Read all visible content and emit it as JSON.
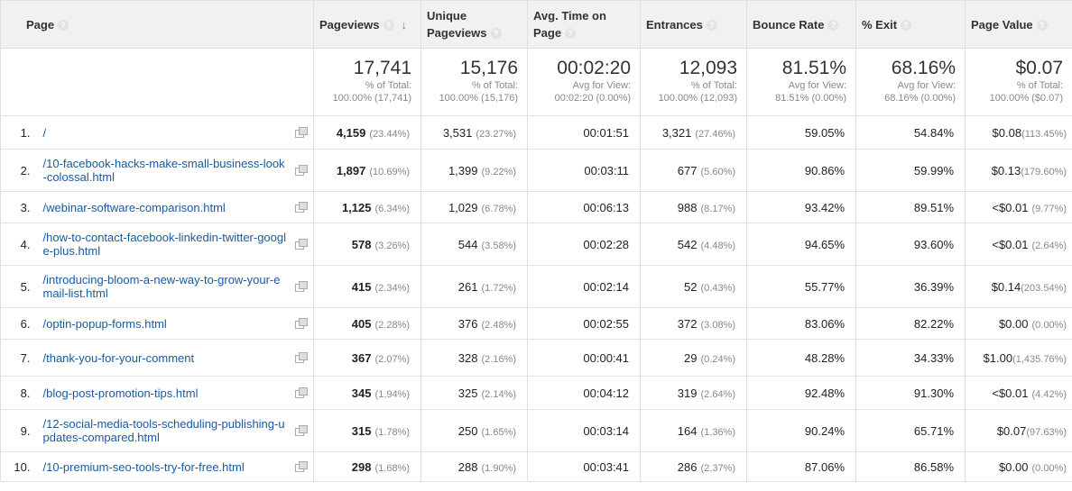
{
  "headers": {
    "page": "Page",
    "pageviews": "Pageviews",
    "unique_line1": "Unique",
    "unique_line2": "Pageviews",
    "avg_line1": "Avg. Time on",
    "avg_line2": "Page",
    "entrances": "Entrances",
    "bounce": "Bounce Rate",
    "exit": "% Exit",
    "value": "Page Value",
    "help_glyph": "?",
    "sort_glyph": "↓"
  },
  "totals": {
    "pageviews": {
      "value": "17,741",
      "sub1": "% of Total:",
      "sub2": "100.00% (17,741)"
    },
    "unique": {
      "value": "15,176",
      "sub1": "% of Total:",
      "sub2": "100.00% (15,176)"
    },
    "avg_time": {
      "value": "00:02:20",
      "sub1": "Avg for View:",
      "sub2": "00:02:20 (0.00%)"
    },
    "entrances": {
      "value": "12,093",
      "sub1": "% of Total:",
      "sub2": "100.00% (12,093)"
    },
    "bounce": {
      "value": "81.51%",
      "sub1": "Avg for View:",
      "sub2": "81.51% (0.00%)"
    },
    "exit": {
      "value": "68.16%",
      "sub1": "Avg for View:",
      "sub2": "68.16% (0.00%)"
    },
    "value": {
      "value": "$0.07",
      "sub1": "% of Total:",
      "sub2": "100.00% ($0.07)"
    }
  },
  "rows": [
    {
      "index": "1.",
      "page": "/",
      "pageviews": "4,159",
      "pageviews_pct": "(23.44%)",
      "unique": "3,531",
      "unique_pct": "(23.27%)",
      "avg_time": "00:01:51",
      "entrances": "3,321",
      "entrances_pct": "(27.46%)",
      "bounce": "59.05%",
      "exit": "54.84%",
      "value": "$0.08",
      "value_pct": "(113.45%)"
    },
    {
      "index": "2.",
      "page": "/10-facebook-hacks-make-small-business-look-colossal.html",
      "pageviews": "1,897",
      "pageviews_pct": "(10.69%)",
      "unique": "1,399",
      "unique_pct": "(9.22%)",
      "avg_time": "00:03:11",
      "entrances": "677",
      "entrances_pct": "(5.60%)",
      "bounce": "90.86%",
      "exit": "59.99%",
      "value": "$0.13",
      "value_pct": "(179.60%)"
    },
    {
      "index": "3.",
      "page": "/webinar-software-comparison.html",
      "pageviews": "1,125",
      "pageviews_pct": "(6.34%)",
      "unique": "1,029",
      "unique_pct": "(6.78%)",
      "avg_time": "00:06:13",
      "entrances": "988",
      "entrances_pct": "(8.17%)",
      "bounce": "93.42%",
      "exit": "89.51%",
      "value": "<$0.01",
      "value_pct": "(9.77%)"
    },
    {
      "index": "4.",
      "page": "/how-to-contact-facebook-linkedin-twitter-google-plus.html",
      "pageviews": "578",
      "pageviews_pct": "(3.26%)",
      "unique": "544",
      "unique_pct": "(3.58%)",
      "avg_time": "00:02:28",
      "entrances": "542",
      "entrances_pct": "(4.48%)",
      "bounce": "94.65%",
      "exit": "93.60%",
      "value": "<$0.01",
      "value_pct": "(2.64%)"
    },
    {
      "index": "5.",
      "page": "/introducing-bloom-a-new-way-to-grow-your-email-list.html",
      "pageviews": "415",
      "pageviews_pct": "(2.34%)",
      "unique": "261",
      "unique_pct": "(1.72%)",
      "avg_time": "00:02:14",
      "entrances": "52",
      "entrances_pct": "(0.43%)",
      "bounce": "55.77%",
      "exit": "36.39%",
      "value": "$0.14",
      "value_pct": "(203.54%)"
    },
    {
      "index": "6.",
      "page": "/optin-popup-forms.html",
      "pageviews": "405",
      "pageviews_pct": "(2.28%)",
      "unique": "376",
      "unique_pct": "(2.48%)",
      "avg_time": "00:02:55",
      "entrances": "372",
      "entrances_pct": "(3.08%)",
      "bounce": "83.06%",
      "exit": "82.22%",
      "value": "$0.00",
      "value_pct": "(0.00%)"
    },
    {
      "index": "7.",
      "page": "/thank-you-for-your-comment",
      "pageviews": "367",
      "pageviews_pct": "(2.07%)",
      "unique": "328",
      "unique_pct": "(2.16%)",
      "avg_time": "00:00:41",
      "entrances": "29",
      "entrances_pct": "(0.24%)",
      "bounce": "48.28%",
      "exit": "34.33%",
      "value": "$1.00",
      "value_pct": "(1,435.76%)"
    },
    {
      "index": "8.",
      "page": "/blog-post-promotion-tips.html",
      "pageviews": "345",
      "pageviews_pct": "(1.94%)",
      "unique": "325",
      "unique_pct": "(2.14%)",
      "avg_time": "00:04:12",
      "entrances": "319",
      "entrances_pct": "(2.64%)",
      "bounce": "92.48%",
      "exit": "91.30%",
      "value": "<$0.01",
      "value_pct": "(4.42%)"
    },
    {
      "index": "9.",
      "page": "/12-social-media-tools-scheduling-publishing-updates-compared.html",
      "pageviews": "315",
      "pageviews_pct": "(1.78%)",
      "unique": "250",
      "unique_pct": "(1.65%)",
      "avg_time": "00:03:14",
      "entrances": "164",
      "entrances_pct": "(1.36%)",
      "bounce": "90.24%",
      "exit": "65.71%",
      "value": "$0.07",
      "value_pct": "(97.63%)"
    },
    {
      "index": "10.",
      "page": "/10-premium-seo-tools-try-for-free.html",
      "pageviews": "298",
      "pageviews_pct": "(1.68%)",
      "unique": "288",
      "unique_pct": "(1.90%)",
      "avg_time": "00:03:41",
      "entrances": "286",
      "entrances_pct": "(2.37%)",
      "bounce": "87.06%",
      "exit": "86.58%",
      "value": "$0.00",
      "value_pct": "(0.00%)"
    }
  ],
  "colors": {
    "link": "#1a5aa0",
    "header_bg": "#f1f1f1",
    "muted": "#888888"
  }
}
